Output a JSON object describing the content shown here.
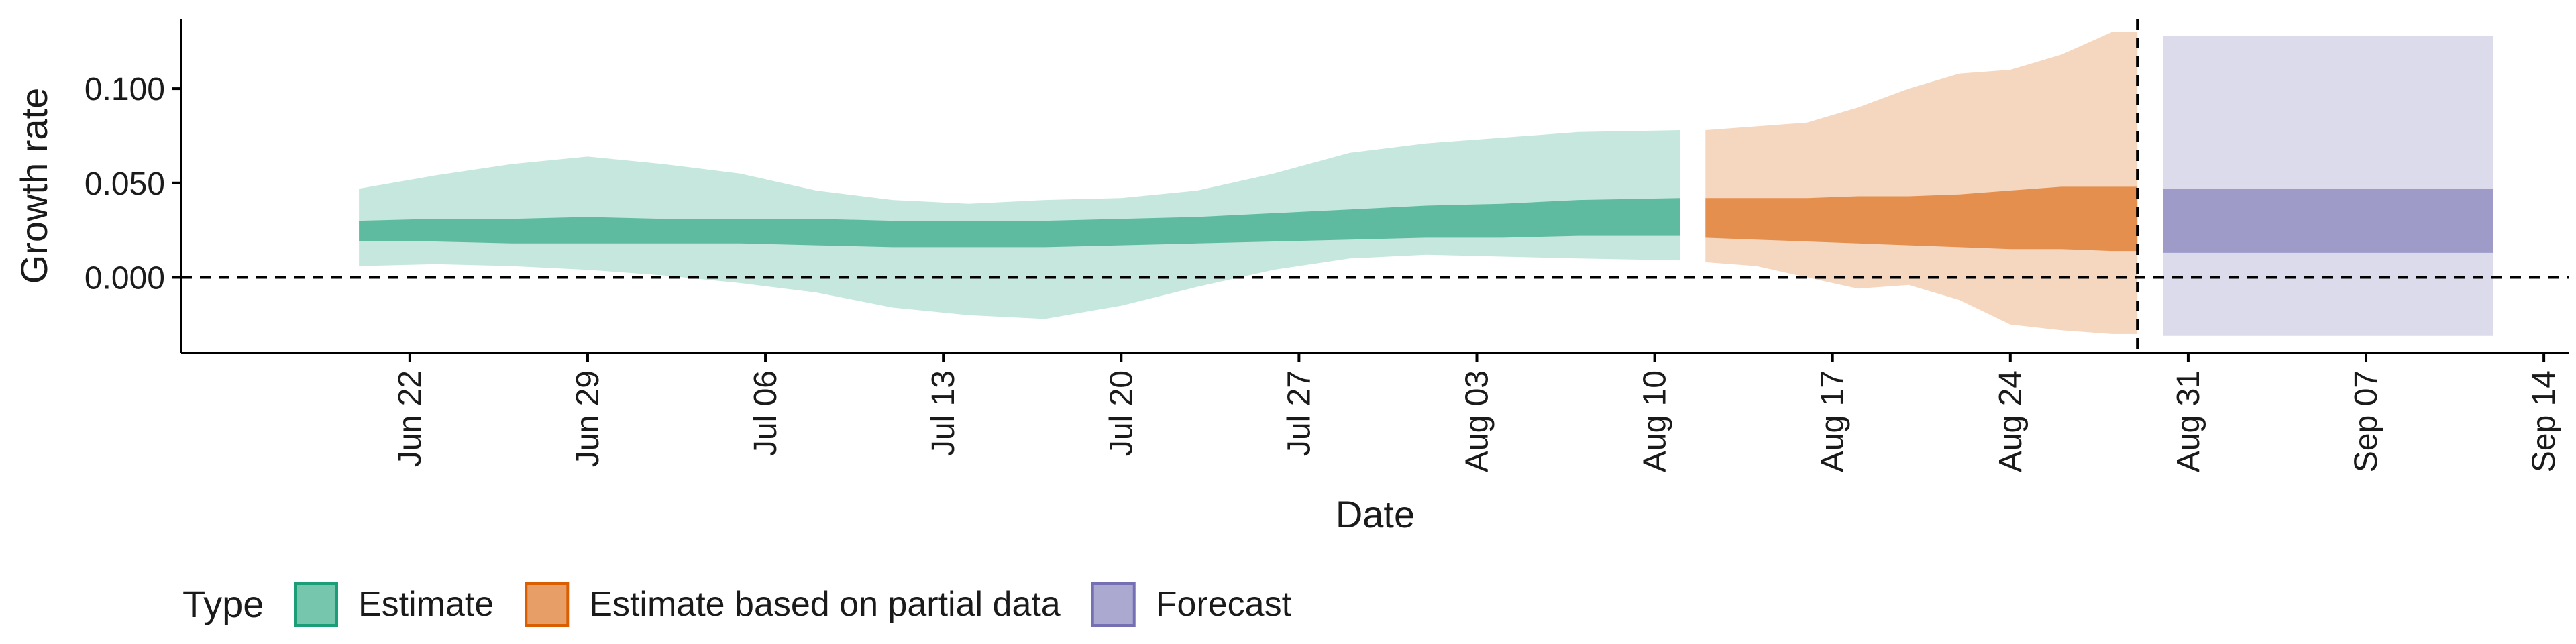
{
  "chart_data": {
    "type": "area",
    "xlabel": "Date",
    "ylabel": "Growth rate",
    "ylim": [
      -0.04,
      0.137
    ],
    "xlim": [
      "2020-06-13",
      "2020-09-15"
    ],
    "y_ticks": [
      0.0,
      0.05,
      0.1
    ],
    "y_tick_labels": [
      "0.000",
      "0.050",
      "0.100"
    ],
    "x_ticks": [
      "2020-06-22",
      "2020-06-29",
      "2020-07-06",
      "2020-07-13",
      "2020-07-20",
      "2020-07-27",
      "2020-08-03",
      "2020-08-10",
      "2020-08-17",
      "2020-08-24",
      "2020-08-31",
      "2020-09-07",
      "2020-09-14"
    ],
    "x_tick_labels": [
      "Jun 22",
      "Jun 29",
      "Jul 06",
      "Jul 13",
      "Jul 20",
      "Jul 27",
      "Aug 03",
      "Aug 10",
      "Aug 17",
      "Aug 24",
      "Aug 31",
      "Sep 07",
      "Sep 14"
    ],
    "hline": 0.0,
    "vline": "2020-08-29",
    "grid": false,
    "legend": {
      "title": "Type",
      "placement": "bottom",
      "items": [
        {
          "label": "Estimate",
          "color": "#1b9e77"
        },
        {
          "label": "Estimate based on partial data",
          "color": "#d95f02"
        },
        {
          "label": "Forecast",
          "color": "#7570b3"
        }
      ]
    },
    "series": [
      {
        "name": "Estimate",
        "color": "#1b9e77",
        "x": [
          "2020-06-20",
          "2020-06-23",
          "2020-06-26",
          "2020-06-29",
          "2020-07-02",
          "2020-07-05",
          "2020-07-08",
          "2020-07-11",
          "2020-07-14",
          "2020-07-17",
          "2020-07-20",
          "2020-07-23",
          "2020-07-26",
          "2020-07-29",
          "2020-08-01",
          "2020-08-04",
          "2020-08-07",
          "2020-08-11"
        ],
        "lower90": [
          0.006,
          0.007,
          0.006,
          0.004,
          0.001,
          -0.003,
          -0.008,
          -0.016,
          -0.02,
          -0.022,
          -0.015,
          -0.005,
          0.004,
          0.01,
          0.012,
          0.011,
          0.01,
          0.009
        ],
        "upper90": [
          0.047,
          0.054,
          0.06,
          0.064,
          0.06,
          0.055,
          0.046,
          0.041,
          0.039,
          0.041,
          0.042,
          0.046,
          0.055,
          0.066,
          0.071,
          0.074,
          0.077,
          0.078
        ],
        "lower50": [
          0.019,
          0.019,
          0.018,
          0.018,
          0.018,
          0.018,
          0.017,
          0.016,
          0.016,
          0.016,
          0.017,
          0.018,
          0.019,
          0.02,
          0.021,
          0.021,
          0.022,
          0.022
        ],
        "upper50": [
          0.03,
          0.031,
          0.031,
          0.032,
          0.031,
          0.031,
          0.031,
          0.03,
          0.03,
          0.03,
          0.031,
          0.032,
          0.034,
          0.036,
          0.038,
          0.039,
          0.041,
          0.042
        ]
      },
      {
        "name": "Estimate based on partial data",
        "color": "#d95f02",
        "x": [
          "2020-08-12",
          "2020-08-14",
          "2020-08-16",
          "2020-08-18",
          "2020-08-20",
          "2020-08-22",
          "2020-08-24",
          "2020-08-26",
          "2020-08-28",
          "2020-08-29"
        ],
        "lower90": [
          0.008,
          0.006,
          0.0,
          -0.006,
          -0.004,
          -0.012,
          -0.025,
          -0.028,
          -0.03,
          -0.03
        ],
        "upper90": [
          0.078,
          0.08,
          0.082,
          0.09,
          0.1,
          0.108,
          0.11,
          0.118,
          0.13,
          0.13
        ],
        "lower50": [
          0.021,
          0.02,
          0.019,
          0.018,
          0.017,
          0.016,
          0.015,
          0.015,
          0.014,
          0.014
        ],
        "upper50": [
          0.042,
          0.042,
          0.042,
          0.043,
          0.043,
          0.044,
          0.046,
          0.048,
          0.048,
          0.048
        ]
      },
      {
        "name": "Forecast",
        "color": "#7570b3",
        "x": [
          "2020-08-30",
          "2020-09-12"
        ],
        "lower90": [
          -0.031,
          -0.031
        ],
        "upper90": [
          0.128,
          0.128
        ],
        "lower50": [
          0.013,
          0.013
        ],
        "upper50": [
          0.047,
          0.047
        ]
      }
    ]
  }
}
